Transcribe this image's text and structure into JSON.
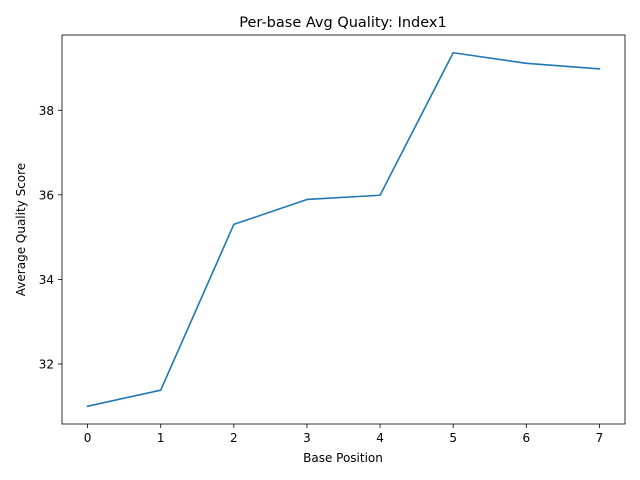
{
  "chart_data": {
    "type": "line",
    "title": "Per-base Avg Quality: Index1",
    "xlabel": "Base Position",
    "ylabel": "Average Quality Score",
    "x": [
      0,
      1,
      2,
      3,
      4,
      5,
      6,
      7
    ],
    "series": [
      {
        "values": [
          31.0,
          31.38,
          35.3,
          35.89,
          35.99,
          39.36,
          39.11,
          38.98
        ],
        "color": "#1f77b4"
      }
    ],
    "xlim": [
      -0.35,
      7.35
    ],
    "ylim": [
      30.58,
      39.78
    ],
    "xticks": [
      0,
      1,
      2,
      3,
      4,
      5,
      6,
      7
    ],
    "yticks": [
      32,
      34,
      36,
      38
    ],
    "grid": false,
    "legend": false
  }
}
